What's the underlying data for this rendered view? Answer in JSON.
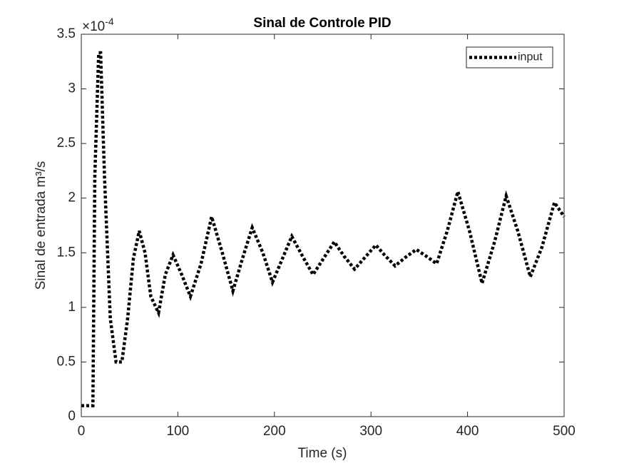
{
  "chart_data": {
    "type": "line",
    "title": "Sinal de Controle PID",
    "x_label": "Time (s)",
    "y_label": "Sinal de entrada m³/s",
    "y_multiplier": {
      "base": "×10",
      "exponent": "-4"
    },
    "x": [
      0,
      12,
      14,
      18,
      20,
      24,
      30,
      36,
      42,
      48,
      54,
      60,
      66,
      72,
      80,
      87,
      95,
      104,
      113,
      124,
      135,
      146,
      157,
      167,
      177,
      188,
      198,
      208,
      218,
      229,
      240,
      251,
      262,
      272,
      283,
      294,
      305,
      315,
      325,
      336,
      347,
      357,
      368,
      379,
      390,
      402,
      415,
      428,
      440,
      452,
      465,
      477,
      490,
      500
    ],
    "series": [
      {
        "name": "input",
        "color": "#000000",
        "values": [
          0.1,
          0.1,
          2.2,
          3.33,
          3.33,
          2.2,
          0.9,
          0.5,
          0.5,
          0.9,
          1.45,
          1.7,
          1.5,
          1.1,
          0.95,
          1.3,
          1.48,
          1.3,
          1.1,
          1.4,
          1.83,
          1.5,
          1.15,
          1.45,
          1.73,
          1.5,
          1.23,
          1.44,
          1.65,
          1.47,
          1.3,
          1.45,
          1.6,
          1.47,
          1.35,
          1.46,
          1.57,
          1.47,
          1.38,
          1.46,
          1.53,
          1.47,
          1.4,
          1.7,
          2.06,
          1.7,
          1.22,
          1.6,
          2.02,
          1.7,
          1.28,
          1.55,
          1.96,
          1.83
        ]
      }
    ],
    "xlim": [
      0,
      500
    ],
    "xticks": [
      0,
      100,
      200,
      300,
      400,
      500
    ],
    "ylim": [
      0,
      3.5
    ],
    "yticks": [
      0,
      0.5,
      1,
      1.5,
      2,
      2.5,
      3,
      3.5
    ],
    "legend": "upper right",
    "line_style": "dotted"
  }
}
